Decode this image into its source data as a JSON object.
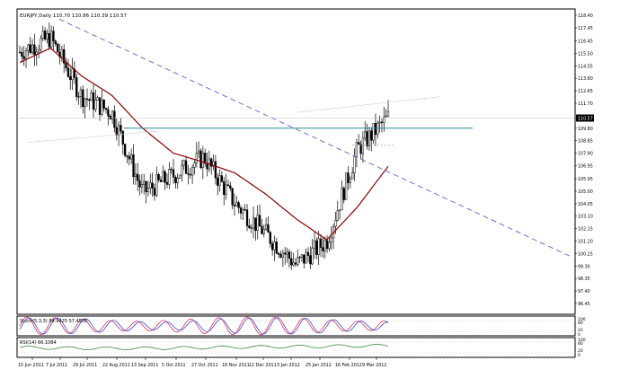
{
  "header": {
    "symbol_info": "EURJPY,Daily  110.70 110.86 110.39 110.57"
  },
  "indicators": {
    "stoch_label": "Stoch(5,3,3) 84.9425 57.4506",
    "rsi_label": "RSI(14) 66.1084",
    "stoch_levels": [
      "100",
      "80",
      "20",
      "0"
    ],
    "rsi_levels": [
      "100",
      "80",
      "20",
      "0"
    ]
  },
  "price_axis": {
    "labels": [
      "118.40",
      "117.45",
      "116.45",
      "115.50",
      "114.55",
      "113.60",
      "112.65",
      "111.70",
      "110.57",
      "109.80",
      "108.85",
      "107.90",
      "106.95",
      "105.95",
      "105.00",
      "104.05",
      "103.10",
      "102.15",
      "101.20",
      "100.25",
      "99.30",
      "98.35",
      "97.40",
      "96.45"
    ],
    "current_price": "110.57"
  },
  "time_axis": {
    "labels": [
      "15 Jun 2011",
      "7 Jul 2011",
      "29 Jul 2011",
      "22 Aug 2011",
      "13 Sep 2011",
      "5 Oct 2011",
      "27 Oct 2011",
      "18 Nov 2011",
      "12 Dec 2011",
      "3 Jan 2012",
      "25 Jan 2012",
      "16 Feb 2012",
      "9 Mar 2012"
    ]
  },
  "colors": {
    "candle": "#000000",
    "moving_average": "#8b0000",
    "trendline": "#6f6fd9",
    "horizontal_level": "#2e8b9a",
    "stoch_main": "#e0305a",
    "stoch_signal": "#3a4ad8",
    "rsi_line": "#3a8a3a",
    "grid": "#c8c8c8"
  },
  "chart_data": {
    "type": "line",
    "x": [
      "15 Jun 2011",
      "7 Jul 2011",
      "29 Jul 2011",
      "22 Aug 2011",
      "13 Sep 2011",
      "5 Oct 2011",
      "27 Oct 2011",
      "18 Nov 2011",
      "12 Dec 2011",
      "3 Jan 2012",
      "25 Jan 2012",
      "16 Feb 2012",
      "9 Mar 2012"
    ],
    "series": [
      {
        "values": [
          115.6,
          116.7,
          112.3,
          111.0,
          104.9,
          106.2,
          107.6,
          104.1,
          101.8,
          99.4,
          101.2,
          108.2,
          110.6
        ]
      },
      {
        "values": [
          114.8,
          115.9,
          113.8,
          112.3,
          109.8,
          107.9,
          107.2,
          106.4,
          104.8,
          102.9,
          101.3,
          103.8,
          106.9
        ]
      }
    ],
    "horizontal_level": 109.8,
    "ylim": [
      96.45,
      118.4
    ]
  }
}
